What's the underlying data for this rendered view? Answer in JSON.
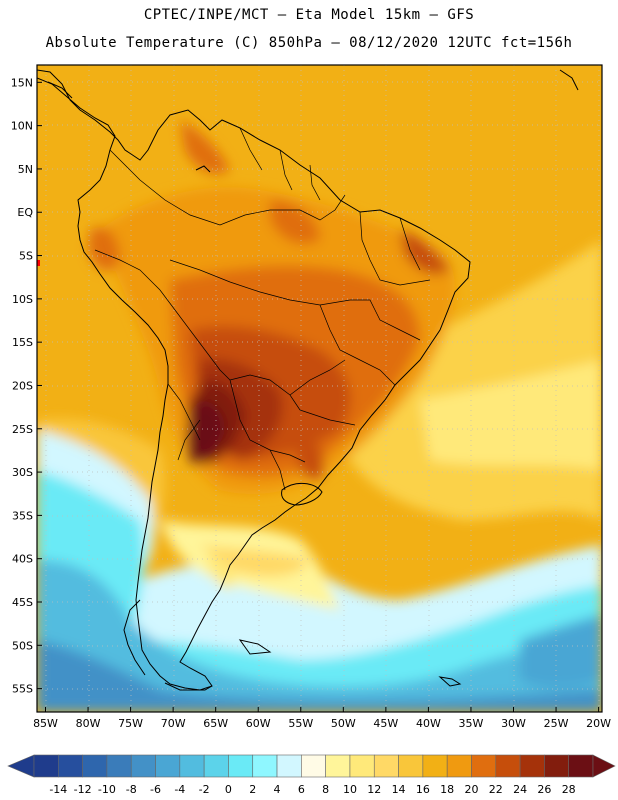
{
  "header": {
    "line1": "CPTEC/INPE/MCT –  Eta Model 15km – GFS",
    "line2": "Absolute Temperature (C) 850hPa – 08/12/2020 12UTC fct=156h"
  },
  "axes": {
    "lat_labels": [
      "15N",
      "10N",
      "5N",
      "EQ",
      "5S",
      "10S",
      "15S",
      "20S",
      "25S",
      "30S",
      "35S",
      "40S",
      "45S",
      "50S",
      "55S"
    ],
    "lat_values": [
      15,
      10,
      5,
      0,
      -5,
      -10,
      -15,
      -20,
      -25,
      -30,
      -35,
      -40,
      -45,
      -50,
      -55
    ],
    "lon_labels": [
      "85W",
      "80W",
      "75W",
      "70W",
      "65W",
      "60W",
      "55W",
      "50W",
      "45W",
      "40W",
      "35W",
      "30W",
      "25W",
      "20W"
    ],
    "lon_values": [
      -85,
      -80,
      -75,
      -70,
      -65,
      -60,
      -55,
      -50,
      -45,
      -40,
      -35,
      -30,
      -25,
      -20
    ],
    "lat_range": [
      -57.7,
      17.0
    ],
    "lon_range": [
      -86.0,
      -19.6
    ]
  },
  "colorbar": {
    "labels": [
      "-14",
      "-12",
      "-10",
      "-8",
      "-6",
      "-4",
      "-2",
      "0",
      "2",
      "4",
      "6",
      "8",
      "10",
      "12",
      "14",
      "16",
      "18",
      "20",
      "22",
      "24",
      "26",
      "28"
    ],
    "colors": [
      "#1f3c8c",
      "#264f9e",
      "#2e66ad",
      "#3a7cba",
      "#4391c7",
      "#4aa6d4",
      "#52bcdf",
      "#5cd3ea",
      "#6aeaf6",
      "#8ff7ff",
      "#d2f7ff",
      "#fffbe6",
      "#fff59a",
      "#ffe97a",
      "#ffd966",
      "#f9c63a",
      "#f2b015",
      "#f09a10",
      "#e06e0f",
      "#c64e0b",
      "#a5320a",
      "#821d0d",
      "#6b0f14"
    ],
    "low_color": "#1f3c8c",
    "high_color": "#6b0f14"
  }
}
